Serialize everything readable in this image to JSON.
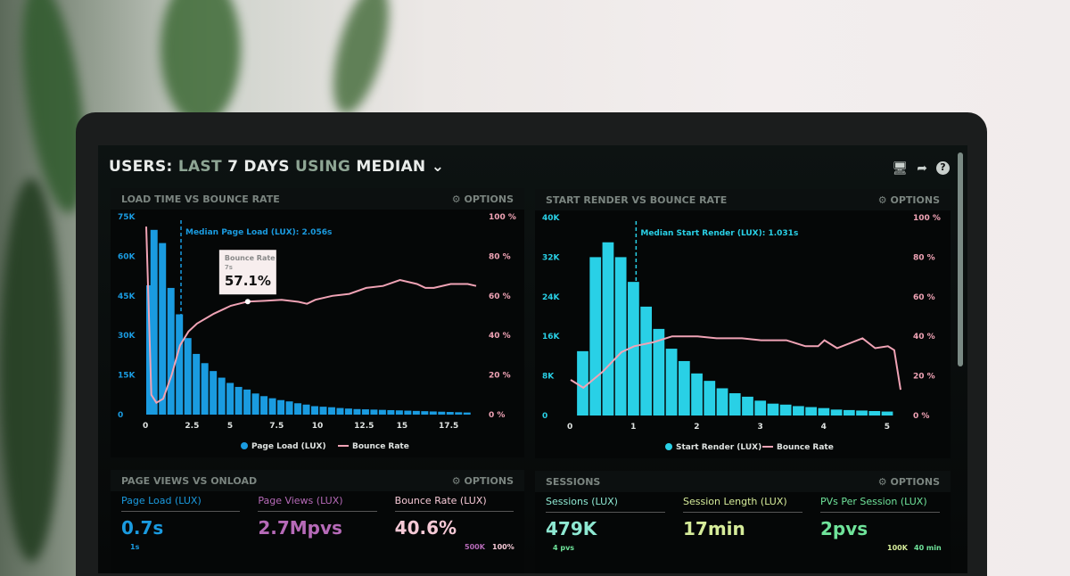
{
  "header": {
    "title_users": "USERS:",
    "title_last": "LAST",
    "title_days": "7 DAYS",
    "title_using": "USING",
    "title_median": "MEDIAN",
    "icons": [
      "monitor-icon",
      "share-icon",
      "help-icon"
    ]
  },
  "options_label": "OPTIONS",
  "colors": {
    "load_bar": "#1a9be0",
    "render_bar": "#29d0e6",
    "bounce": "#f0a3b5",
    "page_views": "#b66ab8",
    "sessions": "#8ee8d2",
    "session_length": "#d6ec9a",
    "pvs": "#6fe39a"
  },
  "chart_data": [
    {
      "type": "bar",
      "title": "LOAD TIME VS BOUNCE RATE",
      "annotation": "Median Page Load (LUX): 2.056s",
      "median": 2.056,
      "tooltip": {
        "title": "Bounce Rate",
        "sub": "7s",
        "value": "57.1%"
      },
      "xlim": [
        0,
        19.5
      ],
      "ylim": [
        0,
        75000
      ],
      "y2lim": [
        0,
        100
      ],
      "xticks": [
        "0",
        "2.5",
        "5",
        "7.5",
        "10",
        "12.5",
        "15",
        "17.5"
      ],
      "yticks": [
        "0",
        "15K",
        "30K",
        "45K",
        "60K",
        "75K"
      ],
      "y2ticks": [
        "0 %",
        "20 %",
        "40 %",
        "60 %",
        "80 %",
        "100 %"
      ],
      "legend": [
        "Page Load (LUX)",
        "Bounce Rate"
      ],
      "bar_width": 0.5,
      "bars": {
        "x": [
          0,
          0.5,
          1,
          1.5,
          2,
          2.5,
          3,
          3.5,
          4,
          4.5,
          5,
          5.5,
          6,
          6.5,
          7,
          7.5,
          8,
          8.5,
          9,
          9.5,
          10,
          10.5,
          11,
          11.5,
          12,
          12.5,
          13,
          13.5,
          14,
          14.5,
          15,
          15.5,
          16,
          16.5,
          17,
          17.5,
          18,
          18.5,
          19
        ],
        "values": [
          49000,
          70000,
          65000,
          48000,
          38000,
          29000,
          23000,
          19500,
          16500,
          14000,
          12000,
          10500,
          9500,
          8000,
          7000,
          6200,
          5500,
          5000,
          4300,
          3800,
          3200,
          3000,
          2800,
          2500,
          2300,
          2100,
          2000,
          1900,
          1800,
          1700,
          1600,
          1500,
          1400,
          1300,
          1200,
          1100,
          1000,
          900,
          800
        ]
      },
      "line": {
        "x": [
          0,
          0.3,
          0.6,
          1,
          1.5,
          2,
          2.5,
          3,
          4,
          5,
          6,
          7,
          8,
          9,
          9.5,
          10,
          11,
          12,
          13,
          14,
          15,
          16,
          16.5,
          17,
          18,
          19,
          19.5
        ],
        "values": [
          95,
          10,
          6,
          8,
          20,
          35,
          42,
          46,
          51,
          55,
          57.1,
          57.5,
          58,
          57,
          56,
          58,
          60,
          61,
          64,
          65,
          68,
          66,
          64,
          64,
          66,
          66,
          65
        ]
      }
    },
    {
      "type": "bar",
      "title": "START RENDER VS BOUNCE RATE",
      "annotation": "Median Start Render (LUX): 1.031s",
      "median": 1.031,
      "xlim": [
        0,
        5.2
      ],
      "ylim": [
        0,
        40000
      ],
      "y2lim": [
        0,
        100
      ],
      "xticks": [
        "0",
        "1",
        "2",
        "3",
        "4",
        "5"
      ],
      "yticks": [
        "0",
        "8K",
        "16K",
        "24K",
        "32K",
        "40K"
      ],
      "y2ticks": [
        "0 %",
        "20 %",
        "40 %",
        "60 %",
        "80 %",
        "100 %"
      ],
      "legend": [
        "Start Render (LUX)",
        "Bounce Rate"
      ],
      "bar_width": 0.2,
      "bars": {
        "x": [
          0.2,
          0.4,
          0.6,
          0.8,
          1,
          1.2,
          1.4,
          1.6,
          1.8,
          2,
          2.2,
          2.4,
          2.6,
          2.8,
          3,
          3.2,
          3.4,
          3.6,
          3.8,
          4,
          4.2,
          4.4,
          4.6,
          4.8,
          5
        ],
        "values": [
          13000,
          32000,
          35000,
          32000,
          27000,
          22000,
          17500,
          13500,
          11000,
          8500,
          7000,
          5500,
          4500,
          3800,
          3000,
          2400,
          2200,
          1900,
          1700,
          1500,
          1200,
          1100,
          1000,
          900,
          800
        ]
      },
      "line": {
        "x": [
          0,
          0.2,
          0.5,
          0.8,
          1,
          1.3,
          1.6,
          2,
          2.3,
          2.7,
          3,
          3.4,
          3.7,
          3.9,
          4,
          4.2,
          4.6,
          4.8,
          5,
          5.1,
          5.2
        ],
        "values": [
          18,
          14,
          22,
          32,
          35,
          37,
          40,
          40,
          39,
          39,
          38,
          38,
          35,
          35,
          38,
          34,
          39,
          34,
          35,
          33,
          13
        ]
      }
    }
  ],
  "page_views": {
    "title": "PAGE VIEWS VS ONLOAD",
    "stats": [
      {
        "label": "Page Load (LUX)",
        "value": "0.7s"
      },
      {
        "label": "Page Views (LUX)",
        "value": "2.7Mpvs"
      },
      {
        "label": "Bounce Rate (LUX)",
        "value": "40.6%"
      }
    ],
    "sub_left": "1s",
    "sub_mid": "500K",
    "sub_right": "100%"
  },
  "sessions": {
    "title": "SESSIONS",
    "stats": [
      {
        "label": "Sessions (LUX)",
        "value": "479K"
      },
      {
        "label": "Session Length (LUX)",
        "value": "17min"
      },
      {
        "label": "PVs Per Session (LUX)",
        "value": "2pvs"
      }
    ],
    "sub_left": "4 pvs",
    "sub_mid": "100K",
    "sub_right": "40 min"
  }
}
